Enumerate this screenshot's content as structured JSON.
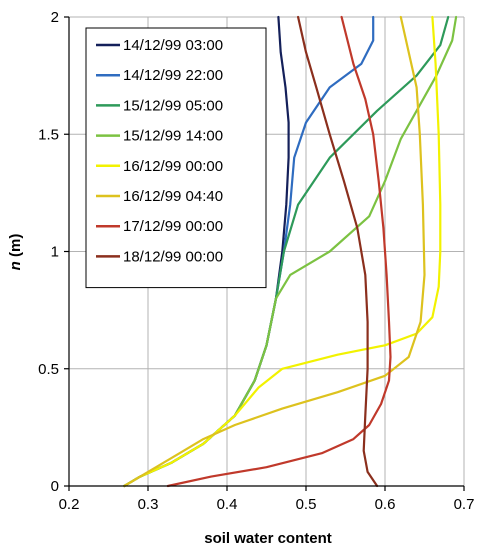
{
  "chart_data": {
    "type": "line",
    "title": "",
    "xlabel": "soil water content",
    "ylabel_italic": "n",
    "ylabel_unit": " (m)",
    "xlim": [
      0.2,
      0.7
    ],
    "ylim": [
      0,
      2
    ],
    "xticks": [
      0.2,
      0.3,
      0.4,
      0.5,
      0.6,
      0.7
    ],
    "xtick_labels": [
      "0.2",
      "0.3",
      "0.4",
      "0.5",
      "0.6",
      "0.7"
    ],
    "yticks": [
      0,
      0.5,
      1,
      1.5,
      2
    ],
    "ytick_labels": [
      "0",
      "0.5",
      "1",
      "1.5",
      "2"
    ],
    "grid": true,
    "legend_position": "top-left",
    "series": [
      {
        "name": "14/12/99 03:00",
        "color": "#14205a",
        "points": [
          [
            0.27,
            0
          ],
          [
            0.29,
            0.04
          ],
          [
            0.33,
            0.1
          ],
          [
            0.37,
            0.18
          ],
          [
            0.41,
            0.3
          ],
          [
            0.435,
            0.45
          ],
          [
            0.45,
            0.6
          ],
          [
            0.462,
            0.8
          ],
          [
            0.47,
            1.0
          ],
          [
            0.475,
            1.2
          ],
          [
            0.478,
            1.4
          ],
          [
            0.478,
            1.55
          ],
          [
            0.474,
            1.7
          ],
          [
            0.468,
            1.85
          ],
          [
            0.465,
            2.0
          ]
        ]
      },
      {
        "name": "14/12/99 22:00",
        "color": "#2f6cc0",
        "points": [
          [
            0.27,
            0
          ],
          [
            0.29,
            0.04
          ],
          [
            0.33,
            0.1
          ],
          [
            0.37,
            0.18
          ],
          [
            0.41,
            0.3
          ],
          [
            0.435,
            0.45
          ],
          [
            0.45,
            0.6
          ],
          [
            0.462,
            0.8
          ],
          [
            0.472,
            1.0
          ],
          [
            0.48,
            1.2
          ],
          [
            0.485,
            1.4
          ],
          [
            0.5,
            1.55
          ],
          [
            0.53,
            1.7
          ],
          [
            0.57,
            1.8
          ],
          [
            0.585,
            1.9
          ],
          [
            0.585,
            2.0
          ]
        ]
      },
      {
        "name": "15/12/99 05:00",
        "color": "#2e9a5a",
        "points": [
          [
            0.27,
            0
          ],
          [
            0.29,
            0.04
          ],
          [
            0.33,
            0.1
          ],
          [
            0.37,
            0.18
          ],
          [
            0.41,
            0.3
          ],
          [
            0.435,
            0.45
          ],
          [
            0.45,
            0.6
          ],
          [
            0.462,
            0.8
          ],
          [
            0.472,
            1.0
          ],
          [
            0.49,
            1.2
          ],
          [
            0.53,
            1.4
          ],
          [
            0.59,
            1.6
          ],
          [
            0.64,
            1.75
          ],
          [
            0.67,
            1.88
          ],
          [
            0.68,
            2.0
          ]
        ]
      },
      {
        "name": "15/12/99 14:00",
        "color": "#7cc242",
        "points": [
          [
            0.27,
            0
          ],
          [
            0.29,
            0.04
          ],
          [
            0.33,
            0.1
          ],
          [
            0.37,
            0.18
          ],
          [
            0.41,
            0.3
          ],
          [
            0.435,
            0.45
          ],
          [
            0.45,
            0.6
          ],
          [
            0.462,
            0.8
          ],
          [
            0.48,
            0.9
          ],
          [
            0.53,
            1.0
          ],
          [
            0.58,
            1.15
          ],
          [
            0.6,
            1.3
          ],
          [
            0.62,
            1.48
          ],
          [
            0.64,
            1.6
          ],
          [
            0.665,
            1.75
          ],
          [
            0.685,
            1.9
          ],
          [
            0.69,
            2.0
          ]
        ]
      },
      {
        "name": "16/12/99 00:00",
        "color": "#f2f200",
        "points": [
          [
            0.27,
            0
          ],
          [
            0.29,
            0.04
          ],
          [
            0.33,
            0.1
          ],
          [
            0.37,
            0.18
          ],
          [
            0.41,
            0.3
          ],
          [
            0.44,
            0.42
          ],
          [
            0.47,
            0.5
          ],
          [
            0.54,
            0.56
          ],
          [
            0.6,
            0.6
          ],
          [
            0.64,
            0.65
          ],
          [
            0.66,
            0.72
          ],
          [
            0.668,
            0.85
          ],
          [
            0.67,
            1.0
          ],
          [
            0.67,
            1.2
          ],
          [
            0.668,
            1.5
          ],
          [
            0.664,
            1.8
          ],
          [
            0.66,
            2.0
          ]
        ]
      },
      {
        "name": "16/12/99 04:40",
        "color": "#ddc21e",
        "points": [
          [
            0.27,
            0
          ],
          [
            0.3,
            0.06
          ],
          [
            0.34,
            0.14
          ],
          [
            0.37,
            0.2
          ],
          [
            0.41,
            0.26
          ],
          [
            0.47,
            0.33
          ],
          [
            0.54,
            0.4
          ],
          [
            0.6,
            0.47
          ],
          [
            0.63,
            0.55
          ],
          [
            0.645,
            0.7
          ],
          [
            0.65,
            0.9
          ],
          [
            0.648,
            1.2
          ],
          [
            0.644,
            1.5
          ],
          [
            0.64,
            1.7
          ],
          [
            0.63,
            1.85
          ],
          [
            0.62,
            2.0
          ]
        ]
      },
      {
        "name": "17/12/99 00:00",
        "color": "#c0392b",
        "points": [
          [
            0.325,
            0
          ],
          [
            0.38,
            0.04
          ],
          [
            0.45,
            0.08
          ],
          [
            0.52,
            0.14
          ],
          [
            0.56,
            0.2
          ],
          [
            0.58,
            0.26
          ],
          [
            0.595,
            0.35
          ],
          [
            0.605,
            0.45
          ],
          [
            0.607,
            0.55
          ],
          [
            0.605,
            0.7
          ],
          [
            0.602,
            0.9
          ],
          [
            0.598,
            1.1
          ],
          [
            0.592,
            1.3
          ],
          [
            0.585,
            1.5
          ],
          [
            0.575,
            1.65
          ],
          [
            0.56,
            1.8
          ],
          [
            0.545,
            2.0
          ]
        ]
      },
      {
        "name": "18/12/99 00:00",
        "color": "#8b2f1d",
        "points": [
          [
            0.59,
            0
          ],
          [
            0.578,
            0.06
          ],
          [
            0.573,
            0.15
          ],
          [
            0.575,
            0.3
          ],
          [
            0.578,
            0.5
          ],
          [
            0.578,
            0.7
          ],
          [
            0.575,
            0.9
          ],
          [
            0.565,
            1.1
          ],
          [
            0.548,
            1.3
          ],
          [
            0.53,
            1.5
          ],
          [
            0.513,
            1.7
          ],
          [
            0.5,
            1.85
          ],
          [
            0.49,
            2.0
          ]
        ]
      }
    ]
  }
}
